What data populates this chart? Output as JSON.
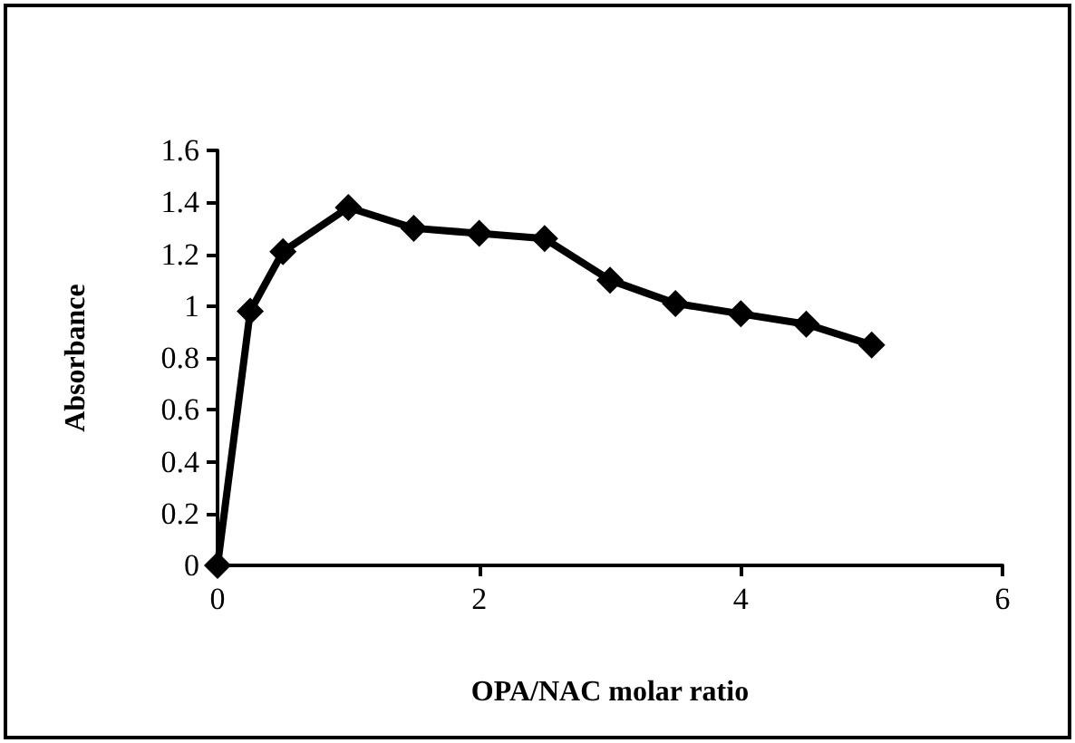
{
  "chart_data": {
    "type": "line",
    "xlabel": "OPA/NAC molar ratio",
    "ylabel": "Absorbance",
    "x": [
      0,
      0.25,
      0.5,
      1,
      1.5,
      2,
      2.5,
      3,
      3.5,
      4,
      4.5,
      5
    ],
    "series": [
      {
        "color": "#000000",
        "values": [
          0,
          0.98,
          1.21,
          1.38,
          1.3,
          1.28,
          1.26,
          1.1,
          1.01,
          0.97,
          0.93,
          0.85
        ]
      }
    ],
    "xlim": [
      0,
      6
    ],
    "xticks": [
      0,
      2,
      4,
      6
    ],
    "ylim": [
      0,
      1.6
    ],
    "yticks": [
      0,
      0.2,
      0.4,
      0.6,
      0.8,
      1,
      1.2,
      1.4,
      1.6
    ],
    "grid": false,
    "marker": "diamond",
    "line_style": "solid"
  }
}
